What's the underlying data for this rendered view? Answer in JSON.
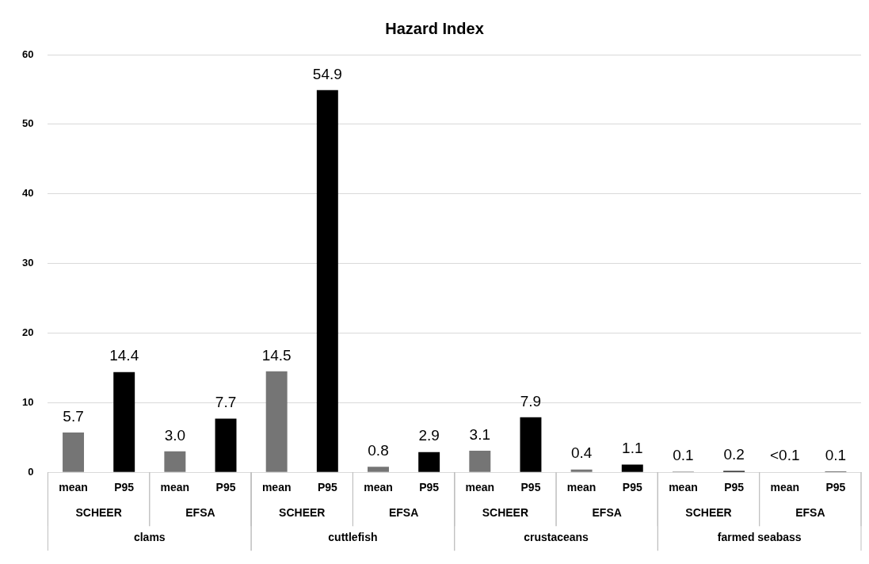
{
  "chart_data": {
    "type": "bar",
    "title": "Hazard Index",
    "categories": [
      "mean",
      "P95",
      "mean",
      "P95",
      "mean",
      "P95",
      "mean",
      "P95",
      "mean",
      "P95",
      "mean",
      "P95",
      "mean",
      "P95",
      "mean",
      "P95"
    ],
    "values": [
      5.7,
      14.4,
      3.0,
      7.7,
      14.5,
      54.9,
      0.8,
      2.9,
      3.1,
      7.9,
      0.4,
      1.1,
      0.1,
      0.2,
      0.05,
      0.1
    ],
    "value_labels": [
      "5.7",
      "14.4",
      "3.0",
      "7.7",
      "14.5",
      "54.9",
      "0.8",
      "2.9",
      "3.1",
      "7.9",
      "0.4",
      "1.1",
      "0.1",
      "0.2",
      "<0.1",
      "0.1"
    ],
    "colors": [
      "#757575",
      "#000000",
      "#757575",
      "#000000",
      "#757575",
      "#000000",
      "#757575",
      "#000000",
      "#757575",
      "#000000",
      "#757575",
      "#000000",
      "#757575",
      "#000000",
      "#757575",
      "#000000"
    ],
    "annotations": [
      "SCHEER",
      "EFSA",
      "SCHEER",
      "EFSA",
      "SCHEER",
      "EFSA",
      "SCHEER",
      "EFSA",
      "clams",
      "cuttlefish",
      "crustaceans",
      "farmed seabass"
    ],
    "ylim": [
      0,
      60
    ],
    "yticks": [
      0,
      10,
      20,
      30,
      40,
      50,
      60
    ],
    "grid": "y",
    "legend": false
  }
}
